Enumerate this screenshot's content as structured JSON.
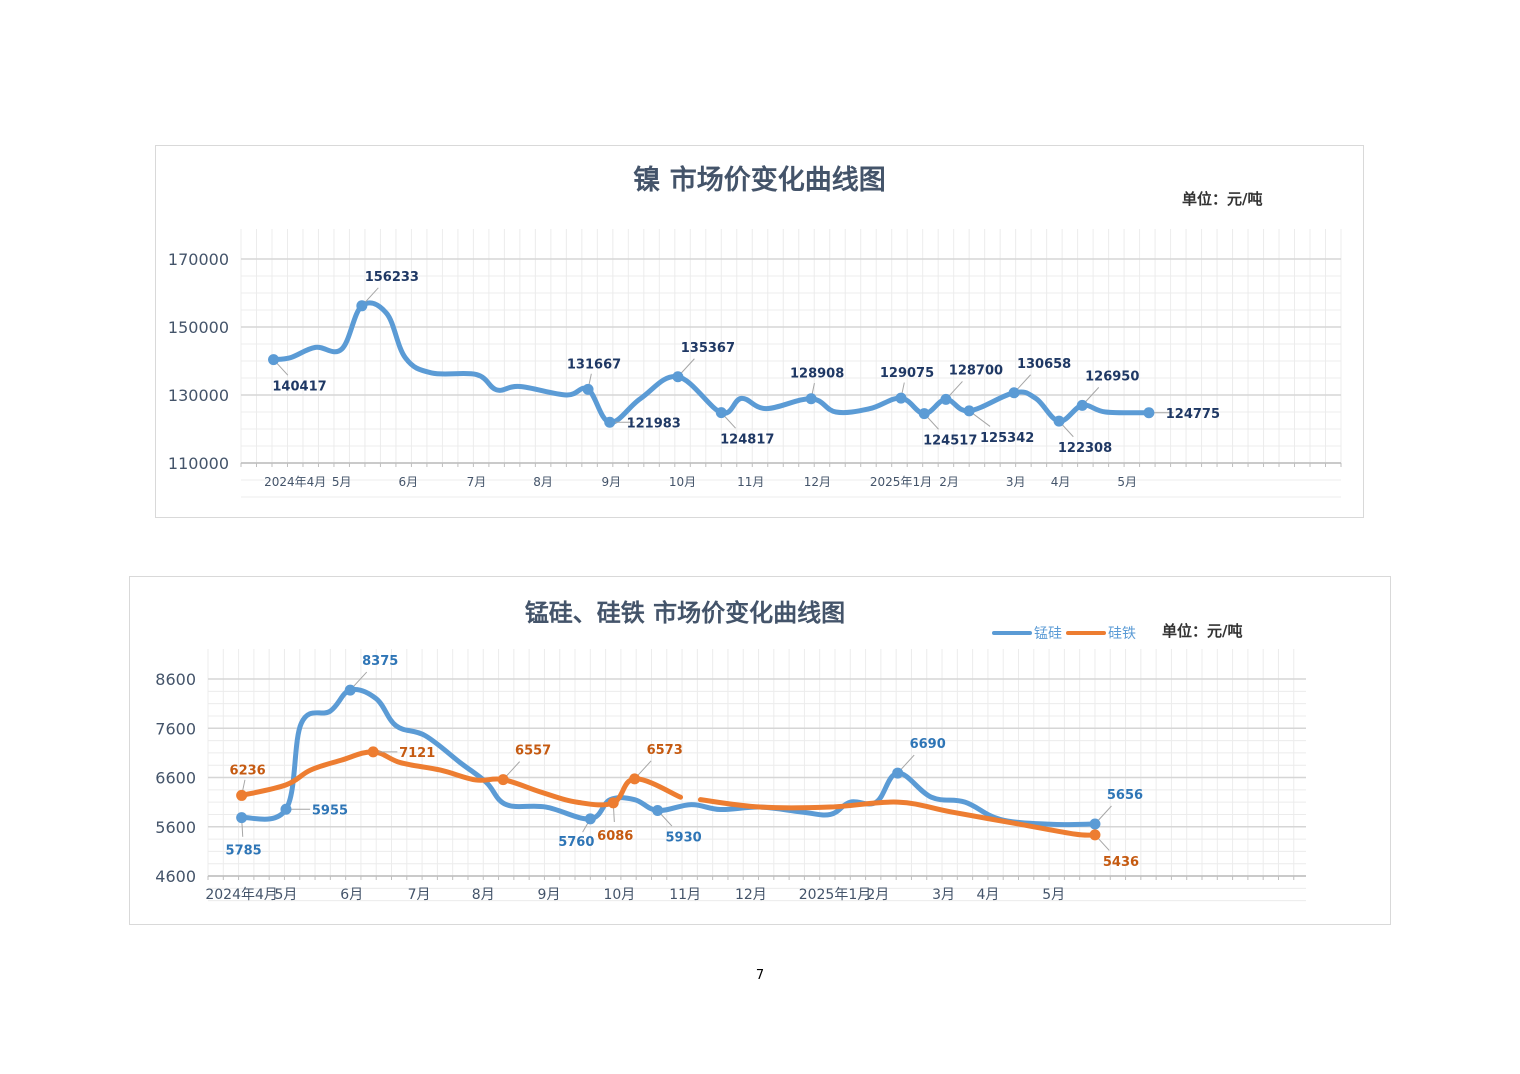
{
  "page_number": "7",
  "chart_data": [
    {
      "type": "line",
      "title": "镍 市场价变化曲线图",
      "unit": "单位：元/吨",
      "xlabel": "",
      "ylabel": "",
      "x_unit": "week index from start of chart",
      "xlim": [
        0,
        71
      ],
      "ylim": [
        110000,
        170000
      ],
      "yticks": [
        110000,
        130000,
        150000,
        170000
      ],
      "yticks_labels": [
        "110000",
        "130000",
        "150000",
        "170000"
      ],
      "grid": true,
      "xticks": [
        {
          "x": 3.5,
          "label": "2024年4月"
        },
        {
          "x": 6.5,
          "label": "5月"
        },
        {
          "x": 10.8,
          "label": "6月"
        },
        {
          "x": 15.2,
          "label": "7月"
        },
        {
          "x": 19.5,
          "label": "8月"
        },
        {
          "x": 23.9,
          "label": "9月"
        },
        {
          "x": 28.5,
          "label": "10月"
        },
        {
          "x": 32.9,
          "label": "11月"
        },
        {
          "x": 37.2,
          "label": "12月"
        },
        {
          "x": 42.6,
          "label": "2025年1月"
        },
        {
          "x": 45.7,
          "label": "2月"
        },
        {
          "x": 50.0,
          "label": "3月"
        },
        {
          "x": 52.9,
          "label": "4月"
        },
        {
          "x": 57.2,
          "label": "5月"
        }
      ],
      "series": [
        {
          "name": "镍",
          "color": "#5b9bd5",
          "label_color": "#1f3864",
          "points": [
            {
              "x": 2.1,
              "y": 140417,
              "label": "140417",
              "pos": "below-right"
            },
            {
              "x": 3.2,
              "y": 141000
            },
            {
              "x": 4.8,
              "y": 144000
            },
            {
              "x": 6.5,
              "y": 143500
            },
            {
              "x": 7.8,
              "y": 156233,
              "label": "156233",
              "pos": "above-right"
            },
            {
              "x": 9.4,
              "y": 154000
            },
            {
              "x": 10.6,
              "y": 141000
            },
            {
              "x": 12.3,
              "y": 136500
            },
            {
              "x": 15.2,
              "y": 136000
            },
            {
              "x": 16.5,
              "y": 131500
            },
            {
              "x": 18.0,
              "y": 132500
            },
            {
              "x": 21.0,
              "y": 130000
            },
            {
              "x": 22.4,
              "y": 131667,
              "label": "131667",
              "pos": "above"
            },
            {
              "x": 23.8,
              "y": 121983,
              "label": "121983",
              "pos": "right"
            },
            {
              "x": 25.8,
              "y": 129000
            },
            {
              "x": 28.2,
              "y": 135367,
              "label": "135367",
              "pos": "above-right"
            },
            {
              "x": 31.0,
              "y": 124817,
              "label": "124817",
              "pos": "below-right"
            },
            {
              "x": 32.3,
              "y": 129000
            },
            {
              "x": 33.9,
              "y": 126000
            },
            {
              "x": 36.8,
              "y": 128908,
              "label": "128908",
              "pos": "above"
            },
            {
              "x": 38.4,
              "y": 125000
            },
            {
              "x": 40.6,
              "y": 126000
            },
            {
              "x": 42.6,
              "y": 129075,
              "label": "129075",
              "pos": "above"
            },
            {
              "x": 44.1,
              "y": 124517,
              "label": "124517",
              "pos": "below-right"
            },
            {
              "x": 45.5,
              "y": 128700,
              "label": "128700",
              "pos": "above-right"
            },
            {
              "x": 47.0,
              "y": 125342,
              "label": "125342",
              "pos": "below-right2"
            },
            {
              "x": 49.9,
              "y": 130658,
              "label": "130658",
              "pos": "above-right"
            },
            {
              "x": 51.3,
              "y": 129000
            },
            {
              "x": 52.8,
              "y": 122308,
              "label": "122308",
              "pos": "below-right"
            },
            {
              "x": 54.3,
              "y": 126950,
              "label": "126950",
              "pos": "above-right"
            },
            {
              "x": 55.8,
              "y": 125000
            },
            {
              "x": 58.6,
              "y": 124775,
              "label": "124775",
              "pos": "right"
            }
          ]
        }
      ]
    },
    {
      "type": "line",
      "title": "锰硅、硅铁 市场价变化曲线图",
      "unit": "单位：元/吨",
      "legend_placement": "top-right",
      "xlabel": "",
      "ylabel": "",
      "x_unit": "week index from start of chart",
      "xlim": [
        0,
        71.8
      ],
      "ylim": [
        4600,
        8600
      ],
      "yticks": [
        4600,
        5600,
        6600,
        7600,
        8600
      ],
      "yticks_labels": [
        "4600",
        "5600",
        "6600",
        "7600",
        "8600"
      ],
      "grid": true,
      "xticks": [
        {
          "x": 2.2,
          "label": "2024年4月"
        },
        {
          "x": 5.1,
          "label": "5月"
        },
        {
          "x": 9.4,
          "label": "6月"
        },
        {
          "x": 13.8,
          "label": "7月"
        },
        {
          "x": 18.0,
          "label": "8月"
        },
        {
          "x": 22.3,
          "label": "9月"
        },
        {
          "x": 26.9,
          "label": "10月"
        },
        {
          "x": 31.2,
          "label": "11月"
        },
        {
          "x": 35.5,
          "label": "12月"
        },
        {
          "x": 41.0,
          "label": "2025年1月"
        },
        {
          "x": 43.8,
          "label": "2月"
        },
        {
          "x": 48.1,
          "label": "3月"
        },
        {
          "x": 51.0,
          "label": "4月"
        },
        {
          "x": 55.3,
          "label": "5月"
        }
      ],
      "series": [
        {
          "name": "锰硅",
          "color": "#5b9bd5",
          "label_color": "#2e75b6",
          "points": [
            {
              "x": 2.2,
              "y": 5785,
              "label": "5785",
              "pos": "below"
            },
            {
              "x": 5.1,
              "y": 5955,
              "label": "5955",
              "pos": "right"
            },
            {
              "x": 6.1,
              "y": 7700
            },
            {
              "x": 8.0,
              "y": 7950
            },
            {
              "x": 9.3,
              "y": 8375,
              "label": "8375",
              "pos": "above-right"
            },
            {
              "x": 11.0,
              "y": 8200
            },
            {
              "x": 12.3,
              "y": 7650
            },
            {
              "x": 14.2,
              "y": 7450
            },
            {
              "x": 16.5,
              "y": 6900
            },
            {
              "x": 18.2,
              "y": 6500
            },
            {
              "x": 19.5,
              "y": 6050
            },
            {
              "x": 22.1,
              "y": 6000
            },
            {
              "x": 25.0,
              "y": 5760,
              "label": "5760",
              "pos": "below-left"
            },
            {
              "x": 26.3,
              "y": 6150
            },
            {
              "x": 27.9,
              "y": 6150
            },
            {
              "x": 29.4,
              "y": 5930,
              "label": "5930",
              "pos": "below-right"
            },
            {
              "x": 31.6,
              "y": 6050
            },
            {
              "x": 33.5,
              "y": 5950
            },
            {
              "x": 36.1,
              "y": 6000
            },
            {
              "x": 38.8,
              "y": 5900
            },
            {
              "x": 40.7,
              "y": 5850
            },
            {
              "x": 42.0,
              "y": 6100
            },
            {
              "x": 43.7,
              "y": 6100
            },
            {
              "x": 45.1,
              "y": 6690,
              "label": "6690",
              "pos": "above-right"
            },
            {
              "x": 47.3,
              "y": 6200
            },
            {
              "x": 49.5,
              "y": 6100
            },
            {
              "x": 51.8,
              "y": 5750
            },
            {
              "x": 55.1,
              "y": 5650
            },
            {
              "x": 58.0,
              "y": 5656,
              "label": "5656",
              "pos": "above-right"
            }
          ]
        },
        {
          "name": "硅铁",
          "color": "#ed7d31",
          "label_color": "#c55a11",
          "points": [
            {
              "x": 2.2,
              "y": 6236,
              "label": "6236",
              "pos": "above"
            },
            {
              "x": 5.1,
              "y": 6450
            },
            {
              "x": 6.7,
              "y": 6750
            },
            {
              "x": 8.7,
              "y": 6950
            },
            {
              "x": 10.8,
              "y": 7121,
              "label": "7121",
              "pos": "right"
            },
            {
              "x": 12.6,
              "y": 6900
            },
            {
              "x": 15.2,
              "y": 6750
            },
            {
              "x": 17.5,
              "y": 6550
            },
            {
              "x": 19.3,
              "y": 6557,
              "label": "6557",
              "pos": "above-right"
            },
            {
              "x": 21.8,
              "y": 6300
            },
            {
              "x": 24.1,
              "y": 6100
            },
            {
              "x": 26.5,
              "y": 6086,
              "label": "6086",
              "pos": "below"
            },
            {
              "x": 27.9,
              "y": 6573,
              "label": "6573",
              "pos": "above-right"
            },
            {
              "x": 30.9,
              "y": 6200
            },
            null,
            {
              "x": 32.2,
              "y": 6150
            },
            {
              "x": 36.1,
              "y": 6000
            },
            {
              "x": 40.7,
              "y": 6000
            },
            {
              "x": 45.1,
              "y": 6100
            },
            {
              "x": 48.6,
              "y": 5900
            },
            {
              "x": 53.1,
              "y": 5650
            },
            {
              "x": 56.7,
              "y": 5450
            },
            {
              "x": 58.0,
              "y": 5436,
              "label": "5436",
              "pos": "below-right"
            }
          ]
        }
      ]
    }
  ]
}
